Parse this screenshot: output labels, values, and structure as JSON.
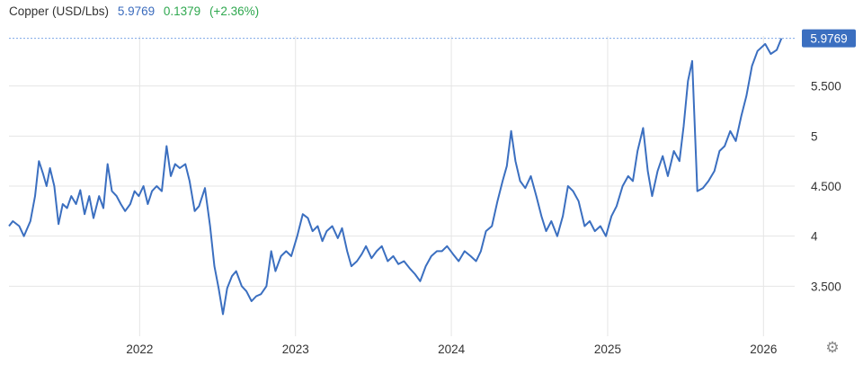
{
  "header": {
    "name": "Copper (USD/Lbs)",
    "last": "5.9769",
    "change": "0.1379",
    "change_pct": "(+2.36%)"
  },
  "colors": {
    "series": "#3b6fc0",
    "positive_change": "#2fa84f",
    "last_badge": "#3b6fc0"
  },
  "settings_icon": "gear-icon",
  "chart_data": {
    "type": "line",
    "title": "Copper (USD/Lbs)",
    "xlabel": "",
    "ylabel": "",
    "grid": true,
    "ylim": [
      3.0,
      6.0
    ],
    "xlim": [
      "2021-03-01",
      "2026-03-15"
    ],
    "y_ticks": [
      3.5,
      4,
      4.5,
      5,
      5.5
    ],
    "y_tick_labels": [
      "3.500",
      "4",
      "4.500",
      "5",
      "5.500"
    ],
    "x_ticks": [
      "2022-01-01",
      "2023-01-01",
      "2024-01-01",
      "2025-01-01",
      "2026-01-01"
    ],
    "x_tick_labels": [
      "2022",
      "2023",
      "2024",
      "2025",
      "2026"
    ],
    "last_value_label": "5.9769",
    "series": [
      {
        "points": [
          [
            "2021-03-01",
            4.1
          ],
          [
            "2021-03-10",
            4.15
          ],
          [
            "2021-03-25",
            4.1
          ],
          [
            "2021-04-05",
            4.0
          ],
          [
            "2021-04-20",
            4.15
          ],
          [
            "2021-05-01",
            4.4
          ],
          [
            "2021-05-10",
            4.75
          ],
          [
            "2021-05-20",
            4.62
          ],
          [
            "2021-05-28",
            4.5
          ],
          [
            "2021-06-05",
            4.68
          ],
          [
            "2021-06-15",
            4.5
          ],
          [
            "2021-06-25",
            4.12
          ],
          [
            "2021-07-05",
            4.32
          ],
          [
            "2021-07-15",
            4.28
          ],
          [
            "2021-07-25",
            4.4
          ],
          [
            "2021-08-05",
            4.32
          ],
          [
            "2021-08-15",
            4.46
          ],
          [
            "2021-08-25",
            4.22
          ],
          [
            "2021-09-05",
            4.4
          ],
          [
            "2021-09-15",
            4.18
          ],
          [
            "2021-09-28",
            4.4
          ],
          [
            "2021-10-08",
            4.28
          ],
          [
            "2021-10-18",
            4.72
          ],
          [
            "2021-10-28",
            4.45
          ],
          [
            "2021-11-08",
            4.4
          ],
          [
            "2021-11-18",
            4.32
          ],
          [
            "2021-11-28",
            4.25
          ],
          [
            "2021-12-10",
            4.32
          ],
          [
            "2021-12-20",
            4.45
          ],
          [
            "2021-12-30",
            4.4
          ],
          [
            "2022-01-10",
            4.5
          ],
          [
            "2022-01-20",
            4.32
          ],
          [
            "2022-01-30",
            4.45
          ],
          [
            "2022-02-10",
            4.5
          ],
          [
            "2022-02-22",
            4.45
          ],
          [
            "2022-03-05",
            4.9
          ],
          [
            "2022-03-15",
            4.6
          ],
          [
            "2022-03-25",
            4.72
          ],
          [
            "2022-04-05",
            4.68
          ],
          [
            "2022-04-18",
            4.72
          ],
          [
            "2022-04-28",
            4.55
          ],
          [
            "2022-05-10",
            4.25
          ],
          [
            "2022-05-20",
            4.3
          ],
          [
            "2022-06-03",
            4.48
          ],
          [
            "2022-06-15",
            4.1
          ],
          [
            "2022-06-25",
            3.7
          ],
          [
            "2022-07-05",
            3.48
          ],
          [
            "2022-07-15",
            3.22
          ],
          [
            "2022-07-25",
            3.48
          ],
          [
            "2022-08-05",
            3.6
          ],
          [
            "2022-08-15",
            3.65
          ],
          [
            "2022-08-28",
            3.5
          ],
          [
            "2022-09-08",
            3.45
          ],
          [
            "2022-09-20",
            3.35
          ],
          [
            "2022-10-01",
            3.4
          ],
          [
            "2022-10-12",
            3.42
          ],
          [
            "2022-10-25",
            3.5
          ],
          [
            "2022-11-05",
            3.85
          ],
          [
            "2022-11-15",
            3.65
          ],
          [
            "2022-11-28",
            3.8
          ],
          [
            "2022-12-10",
            3.85
          ],
          [
            "2022-12-22",
            3.8
          ],
          [
            "2023-01-05",
            4.0
          ],
          [
            "2023-01-18",
            4.22
          ],
          [
            "2023-01-30",
            4.18
          ],
          [
            "2023-02-10",
            4.05
          ],
          [
            "2023-02-22",
            4.1
          ],
          [
            "2023-03-05",
            3.95
          ],
          [
            "2023-03-15",
            4.05
          ],
          [
            "2023-03-28",
            4.1
          ],
          [
            "2023-04-10",
            3.98
          ],
          [
            "2023-04-20",
            4.08
          ],
          [
            "2023-05-02",
            3.85
          ],
          [
            "2023-05-12",
            3.7
          ],
          [
            "2023-05-25",
            3.75
          ],
          [
            "2023-06-05",
            3.82
          ],
          [
            "2023-06-15",
            3.9
          ],
          [
            "2023-06-28",
            3.78
          ],
          [
            "2023-07-10",
            3.85
          ],
          [
            "2023-07-22",
            3.9
          ],
          [
            "2023-08-05",
            3.75
          ],
          [
            "2023-08-18",
            3.8
          ],
          [
            "2023-08-30",
            3.72
          ],
          [
            "2023-09-12",
            3.75
          ],
          [
            "2023-09-25",
            3.68
          ],
          [
            "2023-10-08",
            3.62
          ],
          [
            "2023-10-20",
            3.55
          ],
          [
            "2023-11-02",
            3.7
          ],
          [
            "2023-11-15",
            3.8
          ],
          [
            "2023-11-28",
            3.85
          ],
          [
            "2023-12-10",
            3.85
          ],
          [
            "2023-12-22",
            3.9
          ],
          [
            "2024-01-05",
            3.82
          ],
          [
            "2024-01-18",
            3.75
          ],
          [
            "2024-02-01",
            3.85
          ],
          [
            "2024-02-15",
            3.8
          ],
          [
            "2024-02-28",
            3.75
          ],
          [
            "2024-03-10",
            3.85
          ],
          [
            "2024-03-22",
            4.05
          ],
          [
            "2024-04-05",
            4.1
          ],
          [
            "2024-04-18",
            4.35
          ],
          [
            "2024-04-30",
            4.55
          ],
          [
            "2024-05-10",
            4.7
          ],
          [
            "2024-05-20",
            5.05
          ],
          [
            "2024-05-30",
            4.75
          ],
          [
            "2024-06-10",
            4.55
          ],
          [
            "2024-06-22",
            4.48
          ],
          [
            "2024-07-05",
            4.6
          ],
          [
            "2024-07-18",
            4.4
          ],
          [
            "2024-07-30",
            4.2
          ],
          [
            "2024-08-10",
            4.05
          ],
          [
            "2024-08-22",
            4.15
          ],
          [
            "2024-09-05",
            4.0
          ],
          [
            "2024-09-18",
            4.2
          ],
          [
            "2024-09-30",
            4.5
          ],
          [
            "2024-10-12",
            4.45
          ],
          [
            "2024-10-25",
            4.35
          ],
          [
            "2024-11-08",
            4.1
          ],
          [
            "2024-11-20",
            4.15
          ],
          [
            "2024-12-02",
            4.05
          ],
          [
            "2024-12-15",
            4.1
          ],
          [
            "2024-12-28",
            4.0
          ],
          [
            "2025-01-10",
            4.2
          ],
          [
            "2025-01-22",
            4.3
          ],
          [
            "2025-02-05",
            4.5
          ],
          [
            "2025-02-18",
            4.6
          ],
          [
            "2025-03-01",
            4.55
          ],
          [
            "2025-03-12",
            4.85
          ],
          [
            "2025-03-25",
            5.08
          ],
          [
            "2025-04-05",
            4.65
          ],
          [
            "2025-04-15",
            4.4
          ],
          [
            "2025-04-28",
            4.65
          ],
          [
            "2025-05-10",
            4.8
          ],
          [
            "2025-05-22",
            4.6
          ],
          [
            "2025-06-05",
            4.85
          ],
          [
            "2025-06-18",
            4.75
          ],
          [
            "2025-06-28",
            5.1
          ],
          [
            "2025-07-08",
            5.55
          ],
          [
            "2025-07-18",
            5.75
          ],
          [
            "2025-07-30",
            4.45
          ],
          [
            "2025-08-12",
            4.48
          ],
          [
            "2025-08-25",
            4.55
          ],
          [
            "2025-09-08",
            4.65
          ],
          [
            "2025-09-20",
            4.85
          ],
          [
            "2025-10-02",
            4.9
          ],
          [
            "2025-10-15",
            5.05
          ],
          [
            "2025-10-28",
            4.95
          ],
          [
            "2025-11-10",
            5.2
          ],
          [
            "2025-11-22",
            5.4
          ],
          [
            "2025-12-05",
            5.7
          ],
          [
            "2025-12-18",
            5.85
          ],
          [
            "2026-01-05",
            5.92
          ],
          [
            "2026-01-18",
            5.82
          ],
          [
            "2026-02-01",
            5.86
          ],
          [
            "2026-02-12",
            5.9769
          ]
        ]
      }
    ]
  }
}
